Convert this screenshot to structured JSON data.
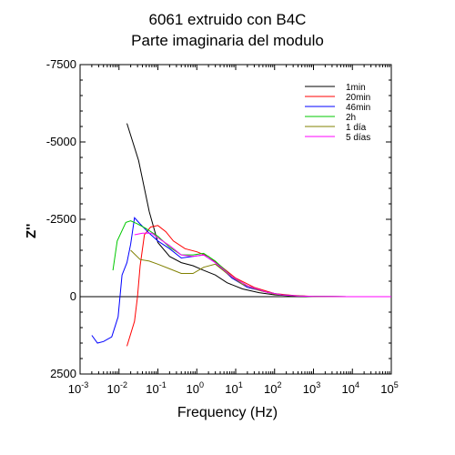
{
  "chart_data": {
    "type": "line",
    "title": "6061 extruido con B4C",
    "subtitle": "Parte imaginaria del modulo",
    "xlabel": "Frequency (Hz)",
    "ylabel": "Z''",
    "x_scale": "log",
    "xlim": [
      0.001,
      100000
    ],
    "x_ticks": [
      {
        "value": 0.001,
        "base": "10",
        "exp": "-3"
      },
      {
        "value": 0.01,
        "base": "10",
        "exp": "-2"
      },
      {
        "value": 0.1,
        "base": "10",
        "exp": "-1"
      },
      {
        "value": 1,
        "base": "10",
        "exp": "0"
      },
      {
        "value": 10,
        "base": "10",
        "exp": "1"
      },
      {
        "value": 100,
        "base": "10",
        "exp": "2"
      },
      {
        "value": 1000,
        "base": "10",
        "exp": "3"
      },
      {
        "value": 10000,
        "base": "10",
        "exp": "4"
      },
      {
        "value": 100000,
        "base": "10",
        "exp": "5"
      }
    ],
    "y_inverted": true,
    "ylim": [
      2500,
      -7500
    ],
    "y_ticks": [
      {
        "value": -7500,
        "label": "-7500"
      },
      {
        "value": -5000,
        "label": "-5000"
      },
      {
        "value": -2500,
        "label": "-2500"
      },
      {
        "value": 0,
        "label": "0"
      },
      {
        "value": 2500,
        "label": "2500"
      }
    ],
    "zero_line": true,
    "grid": false,
    "legend_position": "top-right",
    "series": [
      {
        "name": "1min",
        "color": "#000000",
        "points": [
          [
            0.016,
            -5600
          ],
          [
            0.032,
            -4400
          ],
          [
            0.06,
            -2750
          ],
          [
            0.1,
            -1750
          ],
          [
            0.2,
            -1300
          ],
          [
            0.4,
            -1100
          ],
          [
            0.8,
            -1000
          ],
          [
            1.5,
            -850
          ],
          [
            3,
            -700
          ],
          [
            6,
            -450
          ],
          [
            15,
            -250
          ],
          [
            40,
            -130
          ],
          [
            100,
            -60
          ],
          [
            300,
            -20
          ],
          [
            1000,
            -5
          ],
          [
            10000,
            0
          ],
          [
            100000,
            0
          ]
        ]
      },
      {
        "name": "20min",
        "color": "#ff0000",
        "points": [
          [
            0.016,
            1600
          ],
          [
            0.025,
            800
          ],
          [
            0.03,
            0
          ],
          [
            0.035,
            -1000
          ],
          [
            0.045,
            -2000
          ],
          [
            0.065,
            -2250
          ],
          [
            0.1,
            -2300
          ],
          [
            0.16,
            -2100
          ],
          [
            0.25,
            -1800
          ],
          [
            0.5,
            -1550
          ],
          [
            1.0,
            -1450
          ],
          [
            2.0,
            -1300
          ],
          [
            4,
            -1000
          ],
          [
            10,
            -600
          ],
          [
            30,
            -300
          ],
          [
            100,
            -100
          ],
          [
            300,
            -40
          ],
          [
            1000,
            -10
          ],
          [
            10000,
            0
          ],
          [
            100000,
            0
          ]
        ]
      },
      {
        "name": "46min",
        "color": "#0000ff",
        "points": [
          [
            0.002,
            1250
          ],
          [
            0.0028,
            1500
          ],
          [
            0.004,
            1450
          ],
          [
            0.0065,
            1300
          ],
          [
            0.0095,
            650
          ],
          [
            0.012,
            -700
          ],
          [
            0.016,
            -1100
          ],
          [
            0.02,
            -1700
          ],
          [
            0.025,
            -2550
          ],
          [
            0.035,
            -2350
          ],
          [
            0.06,
            -2050
          ],
          [
            0.1,
            -1800
          ],
          [
            0.2,
            -1550
          ],
          [
            0.4,
            -1250
          ],
          [
            0.8,
            -1300
          ],
          [
            1.5,
            -1350
          ],
          [
            3,
            -1100
          ],
          [
            8,
            -600
          ],
          [
            20,
            -300
          ],
          [
            60,
            -150
          ],
          [
            150,
            -60
          ],
          [
            400,
            -20
          ],
          [
            1000,
            -5
          ],
          [
            10000,
            0
          ],
          [
            100000,
            0
          ]
        ]
      },
      {
        "name": "2h",
        "color": "#00c800",
        "points": [
          [
            0.007,
            -850
          ],
          [
            0.009,
            -1800
          ],
          [
            0.015,
            -2400
          ],
          [
            0.02,
            -2450
          ],
          [
            0.03,
            -2350
          ],
          [
            0.05,
            -2200
          ],
          [
            0.1,
            -1950
          ],
          [
            0.2,
            -1600
          ],
          [
            0.4,
            -1350
          ],
          [
            0.8,
            -1350
          ],
          [
            1.5,
            -1400
          ],
          [
            3,
            -1150
          ],
          [
            8,
            -650
          ],
          [
            20,
            -350
          ],
          [
            60,
            -150
          ],
          [
            150,
            -60
          ],
          [
            400,
            -20
          ],
          [
            1000,
            -5
          ],
          [
            10000,
            0
          ],
          [
            100000,
            0
          ]
        ]
      },
      {
        "name": "1 día",
        "color": "#808000",
        "points": [
          [
            0.02,
            -1500
          ],
          [
            0.035,
            -1200
          ],
          [
            0.06,
            -1150
          ],
          [
            0.1,
            -1050
          ],
          [
            0.2,
            -900
          ],
          [
            0.4,
            -750
          ],
          [
            0.8,
            -750
          ],
          [
            1.5,
            -950
          ],
          [
            3,
            -1050
          ],
          [
            6,
            -750
          ],
          [
            15,
            -400
          ],
          [
            40,
            -200
          ],
          [
            100,
            -80
          ],
          [
            300,
            -30
          ],
          [
            1000,
            -10
          ],
          [
            10000,
            0
          ],
          [
            100000,
            0
          ]
        ]
      },
      {
        "name": "5 días",
        "color": "#ff00ff",
        "points": [
          [
            0.025,
            -2000
          ],
          [
            0.04,
            -2050
          ],
          [
            0.07,
            -2050
          ],
          [
            0.1,
            -1900
          ],
          [
            0.2,
            -1650
          ],
          [
            0.4,
            -1350
          ],
          [
            0.8,
            -1300
          ],
          [
            1.5,
            -1350
          ],
          [
            3,
            -1100
          ],
          [
            8,
            -650
          ],
          [
            20,
            -350
          ],
          [
            60,
            -150
          ],
          [
            150,
            -60
          ],
          [
            400,
            -20
          ],
          [
            1000,
            -5
          ],
          [
            10000,
            0
          ],
          [
            100000,
            0
          ]
        ]
      }
    ]
  }
}
